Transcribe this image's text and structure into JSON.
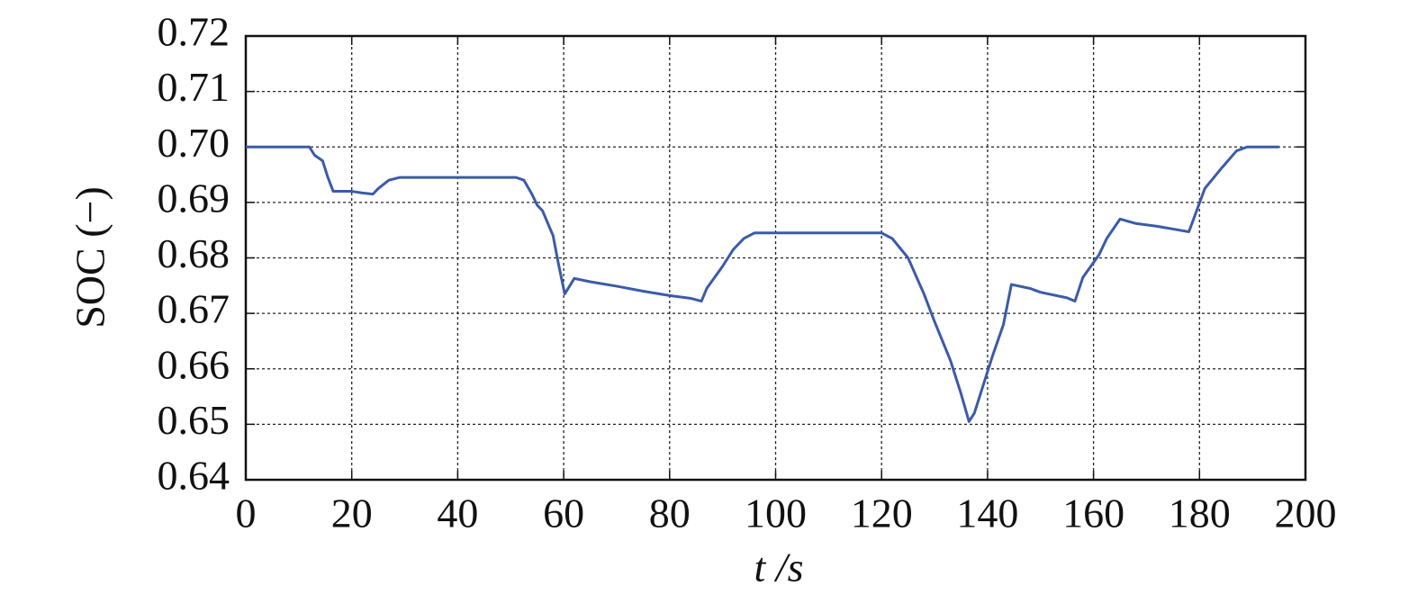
{
  "chart_data": {
    "type": "line",
    "xlabel": "t /s",
    "ylabel": "SOC (−)",
    "xlim": [
      0,
      200
    ],
    "xticks": [
      0,
      20,
      40,
      60,
      80,
      100,
      120,
      140,
      160,
      180,
      200
    ],
    "ylim": [
      0.64,
      0.72
    ],
    "yticks": [
      0.64,
      0.65,
      0.66,
      0.67,
      0.68,
      0.69,
      {
        "value": 0.7,
        "label": "0.70"
      },
      0.71,
      0.72
    ],
    "grid": true,
    "series": [
      {
        "color": "#3b5ba7",
        "x": [
          0,
          12,
          13,
          14.5,
          15.5,
          16.5,
          20,
          22,
          24,
          25,
          27,
          29,
          51,
          52.5,
          54,
          55,
          56,
          58,
          59,
          60.2,
          62,
          65,
          70,
          75,
          80,
          84,
          86,
          87,
          90,
          92,
          94,
          96,
          120,
          122,
          125,
          128,
          130,
          133,
          135,
          136.5,
          137.5,
          139,
          141,
          143,
          144.5,
          148,
          150,
          155,
          156.5,
          158,
          161,
          162.5,
          165,
          168,
          172,
          175,
          178,
          181,
          184,
          187,
          189,
          195
        ],
        "values": [
          0.7,
          0.7,
          0.6985,
          0.6975,
          0.6945,
          0.692,
          0.692,
          0.6917,
          0.6915,
          0.6925,
          0.694,
          0.6945,
          0.6945,
          0.694,
          0.6915,
          0.6895,
          0.6885,
          0.684,
          0.679,
          0.6735,
          0.6763,
          0.6757,
          0.6749,
          0.674,
          0.6732,
          0.6727,
          0.6722,
          0.6745,
          0.6785,
          0.6815,
          0.6835,
          0.6845,
          0.6845,
          0.6835,
          0.68,
          0.6735,
          0.6685,
          0.6615,
          0.6555,
          0.6505,
          0.652,
          0.6565,
          0.6625,
          0.668,
          0.6752,
          0.6745,
          0.6738,
          0.6728,
          0.6722,
          0.6765,
          0.6805,
          0.6835,
          0.687,
          0.6862,
          0.6857,
          0.6852,
          0.6847,
          0.6925,
          0.696,
          0.6993,
          0.7,
          0.7
        ]
      }
    ]
  }
}
